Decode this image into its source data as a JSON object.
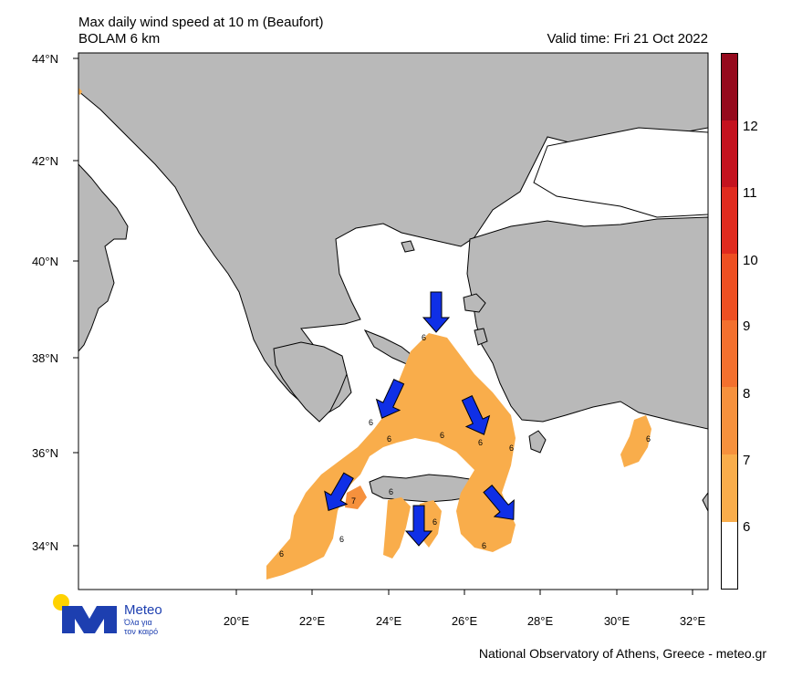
{
  "header": {
    "title_line1": "Max daily wind speed at 10 m (Beaufort)",
    "title_line2": "BOLAM 6 km",
    "valid_time": "Valid time: Fri 21 Oct 2022"
  },
  "axes": {
    "lat_labels": [
      "44°N",
      "42°N",
      "40°N",
      "38°N",
      "36°N",
      "34°N"
    ],
    "lon_labels": [
      "20°E",
      "22°E",
      "24°E",
      "26°E",
      "28°E",
      "30°E",
      "32°E"
    ]
  },
  "colorbar": {
    "labels": [
      "6",
      "7",
      "8",
      "9",
      "10",
      "11",
      "12"
    ],
    "colors": {
      "lt6": "#ffffff",
      "b6": "#f9ad4b",
      "b7": "#f6913d",
      "b8": "#f3702e",
      "b9": "#ee4f22",
      "b10": "#e02a1e",
      "b11": "#c4121e",
      "b12": "#950a1d"
    }
  },
  "map_labels": {
    "val_6": "6",
    "val_7": "7"
  },
  "colors": {
    "land": "#b9b9b9",
    "sea": "#ffffff",
    "arrow": "#0f2fe6"
  },
  "footer": {
    "credit": "National Observatory of Athens, Greece - meteo.gr"
  },
  "logo": {
    "name": "Meteo",
    "tagline1": "Όλα για",
    "tagline2": "τον καιρό"
  }
}
